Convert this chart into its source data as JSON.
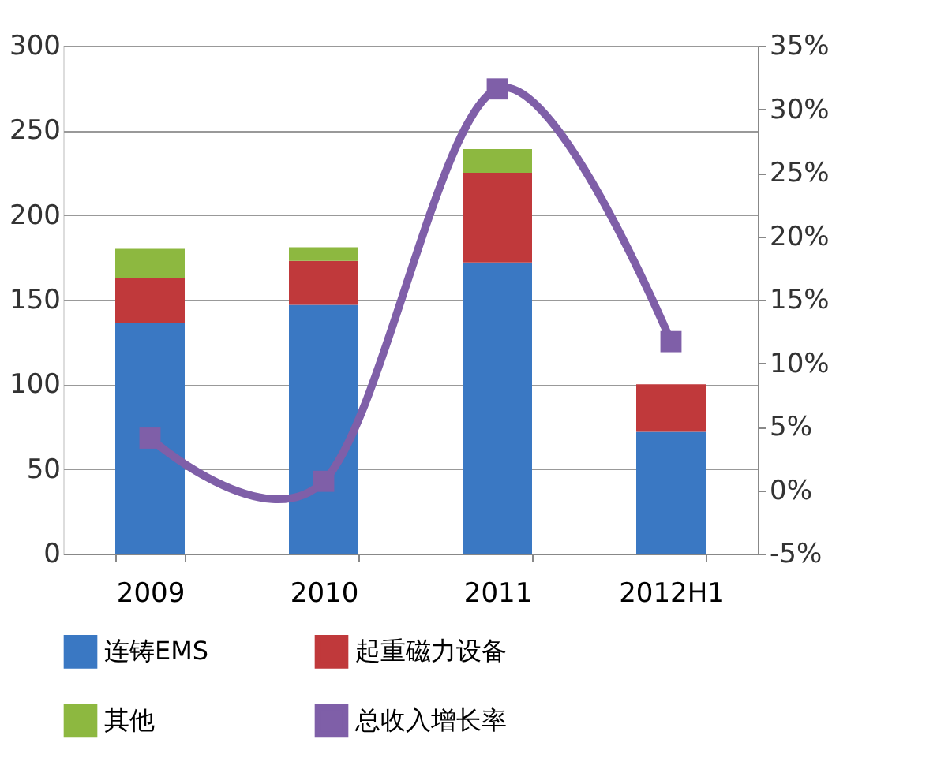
{
  "chart_data": {
    "type": "bar",
    "stacked": true,
    "categories": [
      "2009",
      "2010",
      "2011",
      "2012H1"
    ],
    "series": [
      {
        "name": "连铸EMS",
        "color": "#3a78c3",
        "values": [
          136,
          147,
          172,
          72
        ]
      },
      {
        "name": "起重磁力设备",
        "color": "#c0393b",
        "values": [
          27,
          26,
          53,
          28
        ]
      },
      {
        "name": "其他",
        "color": "#8db840",
        "values": [
          17,
          8,
          14,
          null
        ]
      },
      {
        "name": "总收入增长率",
        "color": "#7f5fa8",
        "type": "line",
        "axis": "y2",
        "marker": "square",
        "values": [
          4.1,
          0.7,
          31.6,
          11.7
        ]
      }
    ],
    "ylim": [
      0,
      300
    ],
    "yticks": [
      0,
      50,
      100,
      150,
      200,
      250,
      300
    ],
    "y2lim": [
      -5,
      35
    ],
    "y2ticks": [
      {
        "value": -5,
        "label": "-5%"
      },
      {
        "value": 0,
        "label": "0%"
      },
      {
        "value": 5,
        "label": "5%"
      },
      {
        "value": 10,
        "label": "10%"
      },
      {
        "value": 15,
        "label": "15%"
      },
      {
        "value": 20,
        "label": "20%"
      },
      {
        "value": 25,
        "label": "25%"
      },
      {
        "value": 30,
        "label": "30%"
      },
      {
        "value": 35,
        "label": "35%"
      }
    ],
    "grid": "y",
    "legend": "bottom"
  }
}
